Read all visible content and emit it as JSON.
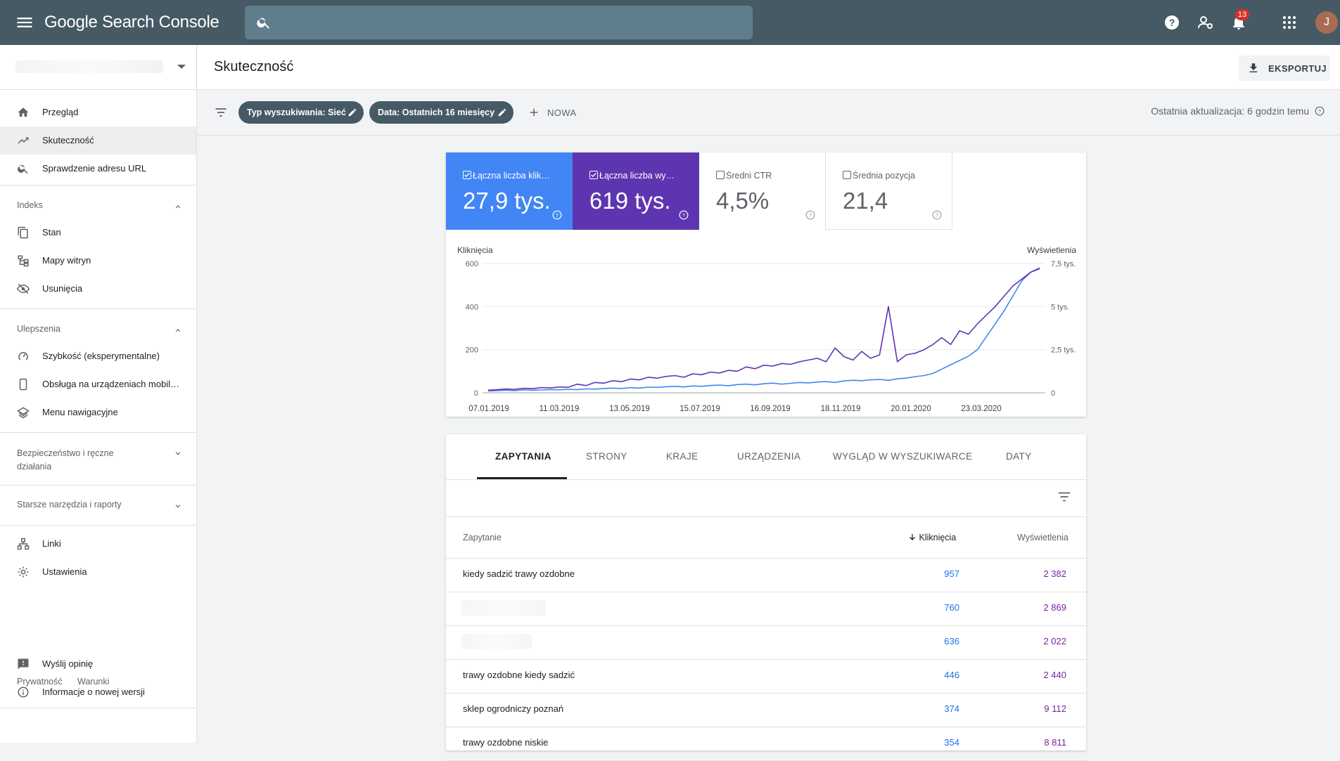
{
  "app": {
    "brand": "Google Search Console",
    "notifications": "13",
    "avatar_letter": "J"
  },
  "header": {
    "title": "Skuteczność",
    "export_label": "EKSPORTUJ"
  },
  "filters": {
    "chips": [
      "Typ wyszukiwania: Sieć",
      "Data: Ostatnich 16 miesięcy"
    ],
    "new_label": "NOWA",
    "updated": "Ostatnia aktualizacja: 6 godzin temu"
  },
  "sidebar": {
    "main": [
      {
        "label": "Przegląd",
        "icon": "home-icon"
      },
      {
        "label": "Skuteczność",
        "icon": "trending-up-icon"
      },
      {
        "label": "Sprawdzenie adresu URL",
        "icon": "search-icon"
      }
    ],
    "sections": [
      {
        "title": "Indeks",
        "items": [
          "Stan",
          "Mapy witryn",
          "Usunięcia"
        ]
      },
      {
        "title": "Ulepszenia",
        "items": [
          "Szybkość (eksperymentalne)",
          "Obsługa na urządzeniach mobil…",
          "Menu nawigacyjne"
        ]
      },
      {
        "title": "Bezpieczeństwo i ręczne działania"
      },
      {
        "title": "Starsze narzędzia i raporty"
      }
    ],
    "tools": [
      "Linki",
      "Ustawienia"
    ],
    "bottom": [
      "Wyślij opinię",
      "Informacje o nowej wersji"
    ],
    "footer": [
      "Prywatność",
      "Warunki"
    ]
  },
  "metrics": [
    {
      "label": "Łączna liczba klik…",
      "value": "27,9 tys.",
      "checked": true,
      "color": "#4285f4"
    },
    {
      "label": "Łączna liczba wy…",
      "value": "619 tys.",
      "checked": true,
      "color": "#5e35b1"
    },
    {
      "label": "Średni CTR",
      "value": "4,5%",
      "checked": false
    },
    {
      "label": "Średnia pozycja",
      "value": "21,4",
      "checked": false
    }
  ],
  "chart_data": {
    "type": "line",
    "left_axis_label": "Kliknięcia",
    "right_axis_label": "Wyświetlenia",
    "left_ticks": [
      "600",
      "400",
      "200",
      "0"
    ],
    "right_ticks": [
      "7,5 tys.",
      "5 tys.",
      "2,5 tys.",
      "0"
    ],
    "ylim_left": [
      0,
      600
    ],
    "ylim_right": [
      0,
      7500
    ],
    "x_ticks": [
      "07.01.2019",
      "11.03.2019",
      "13.05.2019",
      "15.07.2019",
      "16.09.2019",
      "18.11.2019",
      "20.01.2020",
      "23.03.2020"
    ],
    "series": [
      {
        "name": "Kliknięcia",
        "color": "#4285f4",
        "values": [
          8,
          10,
          12,
          10,
          14,
          12,
          13,
          15,
          14,
          16,
          15,
          18,
          17,
          20,
          22,
          20,
          24,
          22,
          26,
          25,
          28,
          30,
          27,
          32,
          30,
          34,
          36,
          33,
          38,
          40,
          37,
          42,
          45,
          40,
          44,
          48,
          46,
          50,
          52,
          48,
          55,
          58,
          56,
          60,
          62,
          58,
          65,
          68,
          75,
          80,
          90,
          110,
          130,
          150,
          170,
          200,
          260,
          320,
          380,
          450,
          520,
          560,
          580
        ]
      },
      {
        "name": "Wyświetlenia",
        "color": "#5e35b1",
        "values": [
          150,
          180,
          220,
          200,
          260,
          240,
          300,
          280,
          340,
          320,
          500,
          420,
          600,
          560,
          700,
          650,
          800,
          750,
          900,
          850,
          950,
          1000,
          900,
          1100,
          1050,
          1200,
          1150,
          1300,
          1250,
          1500,
          1400,
          1600,
          1550,
          1700,
          1650,
          1800,
          1900,
          2000,
          1800,
          2600,
          2100,
          1900,
          2400,
          2000,
          2200,
          5000,
          1800,
          2200,
          2300,
          2500,
          2800,
          3200,
          2800,
          3600,
          3400,
          4000,
          4500,
          5000,
          5600,
          6200,
          6600,
          7000,
          7200
        ]
      }
    ]
  },
  "table": {
    "tabs": [
      "ZAPYTANIA",
      "STRONY",
      "KRAJE",
      "URZĄDZENIA",
      "WYGLĄD W WYSZUKIWARCE",
      "DATY"
    ],
    "col_query": "Zapytanie",
    "col_clicks": "Kliknięcia",
    "col_impr": "Wyświetlenia",
    "rows": [
      {
        "q": "kiedy sadzić trawy ozdobne",
        "c": "957",
        "i": "2 382"
      },
      {
        "q": "",
        "c": "760",
        "i": "2 869"
      },
      {
        "q": "",
        "c": "636",
        "i": "2 022"
      },
      {
        "q": "trawy ozdobne kiedy sadzić",
        "c": "446",
        "i": "2 440"
      },
      {
        "q": "sklep ogrodniczy poznań",
        "c": "374",
        "i": "9 112"
      },
      {
        "q": "trawy ozdobne niskie",
        "c": "354",
        "i": "8 811"
      }
    ]
  }
}
